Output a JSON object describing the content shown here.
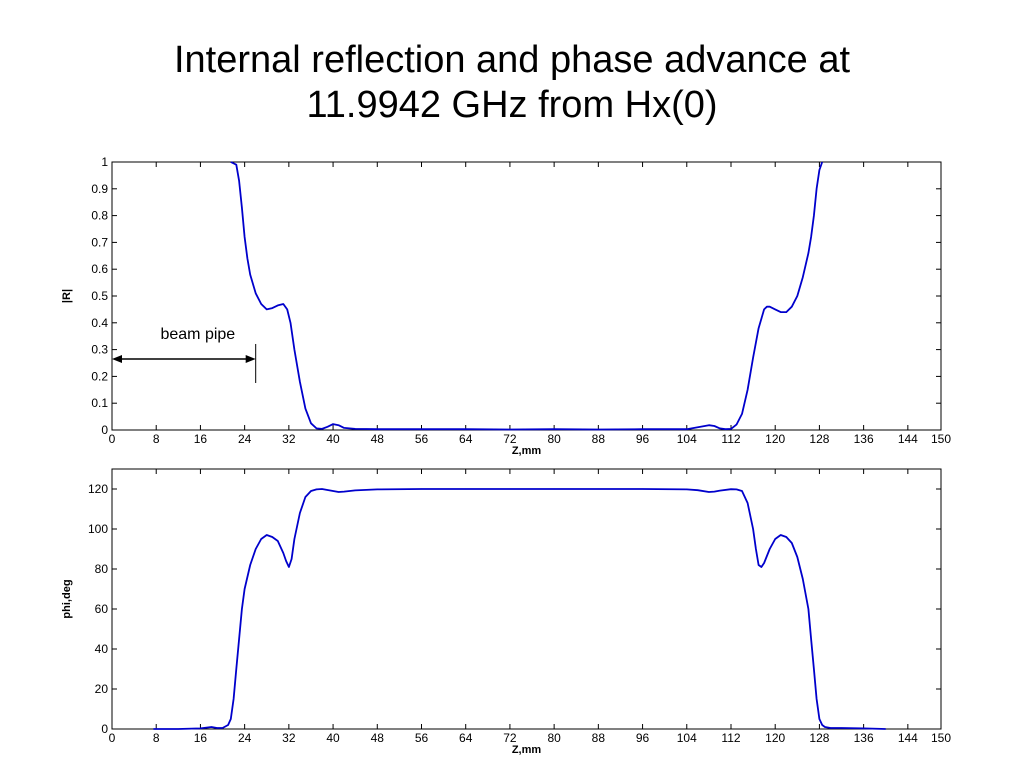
{
  "title": {
    "line1": "Internal reflection and phase advance at",
    "line2": "11.9942 GHz from Hx(0)"
  },
  "line_color": "#0000cc",
  "chart_data": [
    {
      "type": "line",
      "xlabel": "Z,mm",
      "ylabel": "|R|",
      "xlim": [
        0,
        150
      ],
      "ylim": [
        0,
        1
      ],
      "x_ticks": [
        "0",
        "8",
        "16",
        "24",
        "32",
        "40",
        "48",
        "56",
        "64",
        "72",
        "80",
        "88",
        "96",
        "104",
        "112",
        "120",
        "128",
        "136",
        "144",
        "150"
      ],
      "y_ticks": [
        "0",
        "0.1",
        "0.2",
        "0.3",
        "0.4",
        "0.5",
        "0.6",
        "0.7",
        "0.8",
        "0.9",
        "1"
      ],
      "grid": false,
      "annotations": [
        {
          "text": "beam pipe",
          "from_x": 0,
          "to_x": 26,
          "y": 0.265
        }
      ],
      "series": [
        {
          "x": [
            21.5,
            22.5,
            23,
            23.5,
            24,
            24.5,
            25,
            26,
            27,
            28,
            29,
            30,
            31,
            31.7,
            32.3,
            33,
            34,
            35,
            36,
            37,
            38,
            39,
            40,
            41,
            42,
            44,
            48,
            56,
            64,
            72,
            80,
            88,
            96,
            104,
            106,
            108,
            109,
            110,
            111,
            112,
            113,
            114,
            115,
            116,
            117,
            118,
            118.5,
            119,
            120,
            121,
            122,
            123,
            124,
            125,
            126,
            126.5,
            127,
            127.5,
            128,
            128.5
          ],
          "y": [
            1.0,
            0.99,
            0.93,
            0.83,
            0.72,
            0.64,
            0.58,
            0.51,
            0.47,
            0.45,
            0.455,
            0.465,
            0.47,
            0.45,
            0.4,
            0.3,
            0.18,
            0.08,
            0.025,
            0.006,
            0.004,
            0.012,
            0.022,
            0.018,
            0.008,
            0.004,
            0.003,
            0.003,
            0.003,
            0.002,
            0.003,
            0.002,
            0.003,
            0.003,
            0.01,
            0.018,
            0.015,
            0.006,
            0.003,
            0.004,
            0.02,
            0.06,
            0.15,
            0.27,
            0.38,
            0.45,
            0.46,
            0.46,
            0.45,
            0.44,
            0.44,
            0.46,
            0.5,
            0.57,
            0.66,
            0.72,
            0.8,
            0.9,
            0.97,
            1.0
          ]
        }
      ]
    },
    {
      "type": "line",
      "xlabel": "Z,mm",
      "ylabel": "phi,deg",
      "xlim": [
        0,
        150
      ],
      "ylim": [
        0,
        130
      ],
      "x_ticks": [
        "0",
        "8",
        "16",
        "24",
        "32",
        "40",
        "48",
        "56",
        "64",
        "72",
        "80",
        "88",
        "96",
        "104",
        "112",
        "120",
        "128",
        "136",
        "144",
        "150"
      ],
      "y_ticks": [
        "0",
        "20",
        "40",
        "60",
        "80",
        "100",
        "120"
      ],
      "grid": false,
      "series": [
        {
          "x": [
            7.5,
            12,
            16,
            18,
            19,
            20,
            21,
            21.5,
            22,
            22.5,
            23,
            23.5,
            24,
            25,
            26,
            27,
            28,
            29,
            30,
            31,
            31.5,
            32,
            32.5,
            33,
            34,
            35,
            36,
            37,
            38,
            39,
            40,
            41,
            42,
            44,
            48,
            56,
            64,
            72,
            80,
            88,
            96,
            104,
            106,
            108,
            109,
            110,
            112,
            113,
            114,
            115,
            116,
            116.5,
            117,
            117.5,
            118,
            119,
            120,
            121,
            122,
            123,
            124,
            125,
            126,
            126.5,
            127,
            127.5,
            128,
            128.5,
            129,
            130,
            132,
            136,
            140
          ],
          "y": [
            0,
            0,
            0.3,
            1,
            0.5,
            0.5,
            2,
            5,
            15,
            30,
            45,
            60,
            70,
            82,
            90,
            95,
            97,
            96,
            94,
            88,
            84,
            81,
            85,
            95,
            108,
            116,
            119,
            119.8,
            120,
            119.5,
            119,
            118.5,
            118.7,
            119.3,
            119.8,
            120,
            120,
            120,
            120,
            120,
            120,
            119.8,
            119.4,
            118.5,
            118.7,
            119.2,
            119.9,
            119.8,
            119,
            113,
            100,
            90,
            82,
            81,
            83,
            90,
            95,
            97,
            96,
            93,
            86,
            75,
            60,
            45,
            30,
            15,
            5,
            2,
            1,
            0.5,
            0.5,
            0.3,
            0
          ]
        }
      ]
    }
  ]
}
